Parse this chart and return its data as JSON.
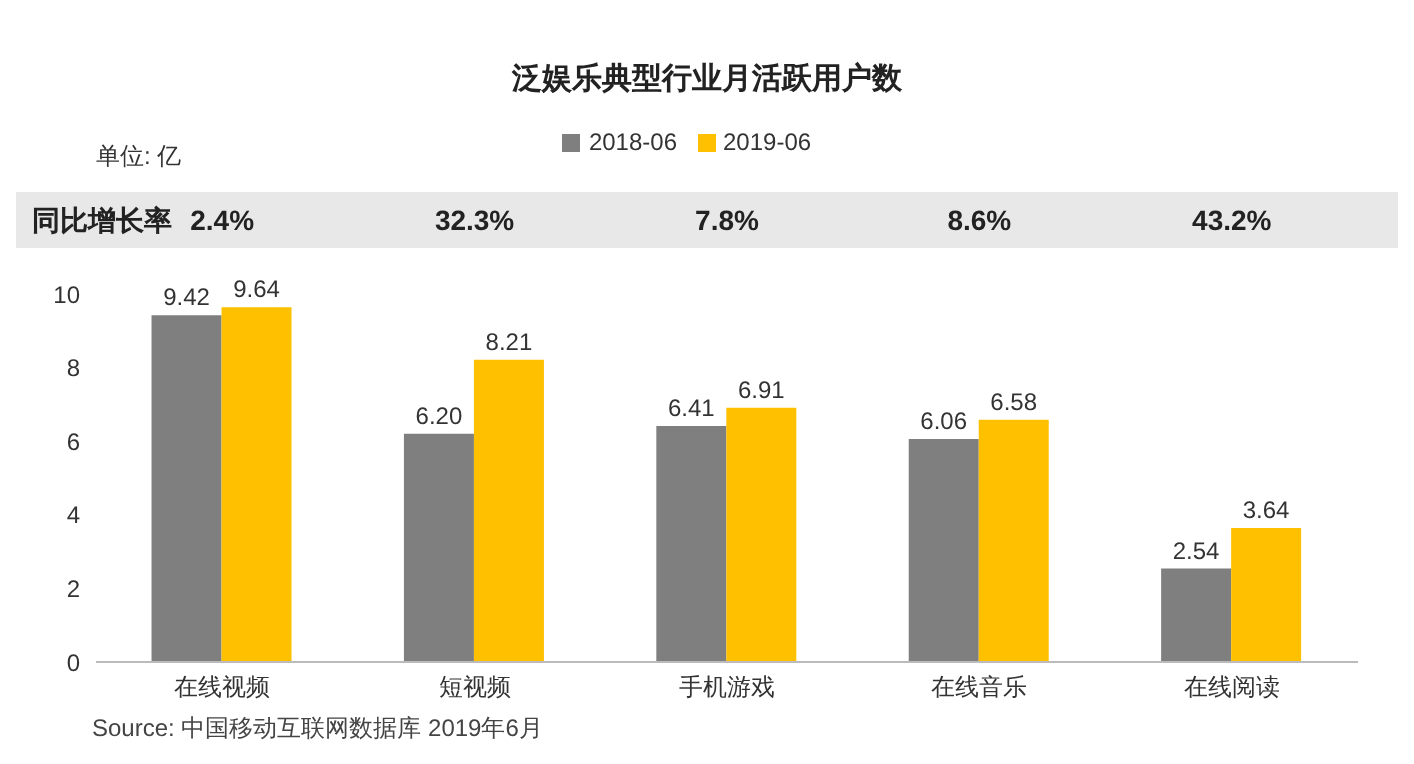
{
  "chart_data": {
    "type": "bar",
    "title": "泛娱乐典型行业月活跃用户数",
    "categories": [
      "在线视频",
      "短视频",
      "手机游戏",
      "在线音乐",
      "在线阅读"
    ],
    "series": [
      {
        "name": "2018-06",
        "color": "#7f7f7f",
        "values": [
          9.42,
          6.2,
          6.41,
          6.06,
          2.54
        ],
        "value_labels": [
          "9.42",
          "6.20",
          "6.41",
          "6.06",
          "2.54"
        ]
      },
      {
        "name": "2019-06",
        "color": "#ffc000",
        "values": [
          9.64,
          8.21,
          6.91,
          6.58,
          3.64
        ],
        "value_labels": [
          "9.64",
          "8.21",
          "6.91",
          "6.58",
          "3.64"
        ]
      }
    ],
    "ylim": [
      0,
      10
    ],
    "yticks": [
      0,
      2,
      4,
      6,
      8,
      10
    ],
    "grid": false,
    "legend": "top",
    "annotations": [
      "单位: 亿",
      "同比增长率",
      "2.4%",
      "32.3%",
      "7.8%",
      "8.6%",
      "43.2%",
      "Source: 中国移动互联网数据库 2019年6月"
    ]
  }
}
